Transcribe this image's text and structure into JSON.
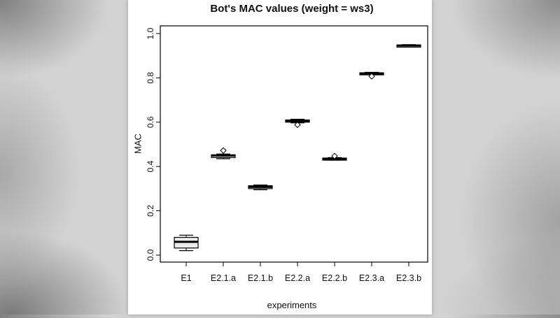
{
  "figure": {
    "title": "Bot's MAC values (weight = ws3)",
    "xlabel": "experiments",
    "ylabel": "MAC"
  },
  "chart_data": {
    "type": "boxplot",
    "title": "Bot's MAC values (weight = ws3)",
    "xlabel": "experiments",
    "ylabel": "MAC",
    "ylim": [
      0.0,
      1.0
    ],
    "yticks": [
      0.0,
      0.2,
      0.4,
      0.6,
      0.8,
      1.0
    ],
    "grid": false,
    "legend": null,
    "categories": [
      "E1",
      "E2.1.a",
      "E2.1.b",
      "E2.2.a",
      "E2.2.b",
      "E2.3.a",
      "E2.3.b"
    ],
    "boxes": [
      {
        "label": "E1",
        "low": 0.02,
        "q1": 0.032,
        "median": 0.06,
        "q3": 0.08,
        "high": 0.09,
        "outliers": []
      },
      {
        "label": "E2.1.a",
        "low": 0.435,
        "q1": 0.44,
        "median": 0.449,
        "q3": 0.453,
        "high": 0.456,
        "outliers": [
          0.472
        ]
      },
      {
        "label": "E2.1.b",
        "low": 0.295,
        "q1": 0.3,
        "median": 0.308,
        "q3": 0.313,
        "high": 0.316,
        "outliers": []
      },
      {
        "label": "E2.2.a",
        "low": 0.597,
        "q1": 0.6,
        "median": 0.605,
        "q3": 0.61,
        "high": 0.613,
        "outliers": [
          0.588
        ]
      },
      {
        "label": "E2.2.b",
        "low": 0.429,
        "q1": 0.431,
        "median": 0.435,
        "q3": 0.438,
        "high": 0.44,
        "outliers": [
          0.447
        ]
      },
      {
        "label": "E2.3.a",
        "low": 0.815,
        "q1": 0.817,
        "median": 0.82,
        "q3": 0.823,
        "high": 0.825,
        "outliers": [
          0.807
        ]
      },
      {
        "label": "E2.3.b",
        "low": 0.942,
        "q1": 0.944,
        "median": 0.946,
        "q3": 0.948,
        "high": 0.95,
        "outliers": []
      }
    ]
  }
}
